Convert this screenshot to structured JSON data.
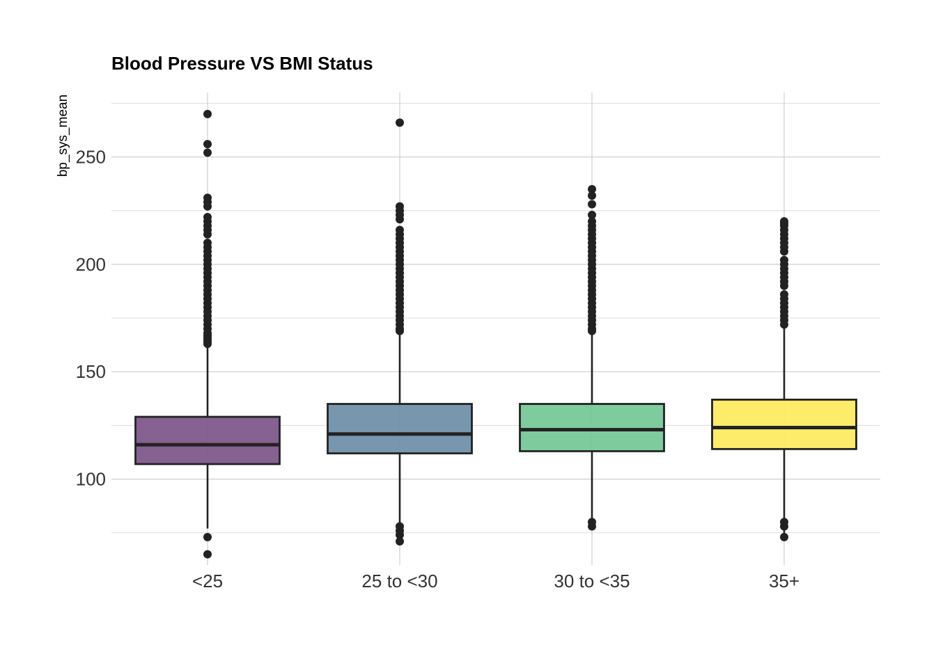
{
  "chart_data": {
    "type": "boxplot",
    "title": "Blood Pressure VS BMI Status",
    "xlabel": "",
    "ylabel": "bp_sys_mean",
    "ylim": [
      60,
      280
    ],
    "yticks": [
      100,
      150,
      200,
      250
    ],
    "grid": true,
    "categories": [
      "<25",
      "25 to <30",
      "30 to <35",
      "35+"
    ],
    "colors": [
      "#7b5589",
      "#6c8ea8",
      "#73c895",
      "#fde95d"
    ],
    "boxes": [
      {
        "category": "<25",
        "q1": 107,
        "median": 116,
        "q3": 129,
        "whisker_low": 77,
        "whisker_high": 162,
        "outliers": [
          65,
          73,
          163,
          164,
          165,
          166,
          167,
          168,
          170,
          172,
          174,
          176,
          178,
          180,
          182,
          184,
          186,
          188,
          190,
          192,
          194,
          196,
          198,
          200,
          202,
          204,
          206,
          208,
          210,
          214,
          216,
          218,
          220,
          222,
          227,
          229,
          231,
          252,
          256,
          270
        ]
      },
      {
        "category": "25 to <30",
        "q1": 112,
        "median": 121,
        "q3": 135,
        "whisker_low": 71,
        "whisker_high": 168,
        "outliers": [
          71,
          74,
          76,
          78,
          169,
          170,
          172,
          174,
          176,
          178,
          180,
          182,
          184,
          186,
          188,
          190,
          192,
          194,
          196,
          198,
          200,
          202,
          204,
          206,
          208,
          210,
          212,
          214,
          216,
          221,
          223,
          225,
          227,
          266
        ]
      },
      {
        "category": "30 to <35",
        "q1": 113,
        "median": 123,
        "q3": 135,
        "whisker_low": 78,
        "whisker_high": 168,
        "outliers": [
          78,
          80,
          169,
          170,
          172,
          174,
          176,
          178,
          180,
          182,
          184,
          186,
          188,
          190,
          192,
          194,
          196,
          198,
          200,
          202,
          204,
          206,
          208,
          210,
          212,
          214,
          216,
          218,
          220,
          223,
          228,
          232,
          235
        ]
      },
      {
        "category": "35+",
        "q1": 114,
        "median": 124,
        "q3": 137,
        "whisker_low": 73,
        "whisker_high": 171,
        "outliers": [
          73,
          78,
          80,
          172,
          174,
          176,
          178,
          180,
          182,
          184,
          186,
          190,
          192,
          194,
          196,
          198,
          200,
          202,
          206,
          208,
          210,
          212,
          214,
          216,
          218,
          219,
          220
        ]
      }
    ]
  }
}
